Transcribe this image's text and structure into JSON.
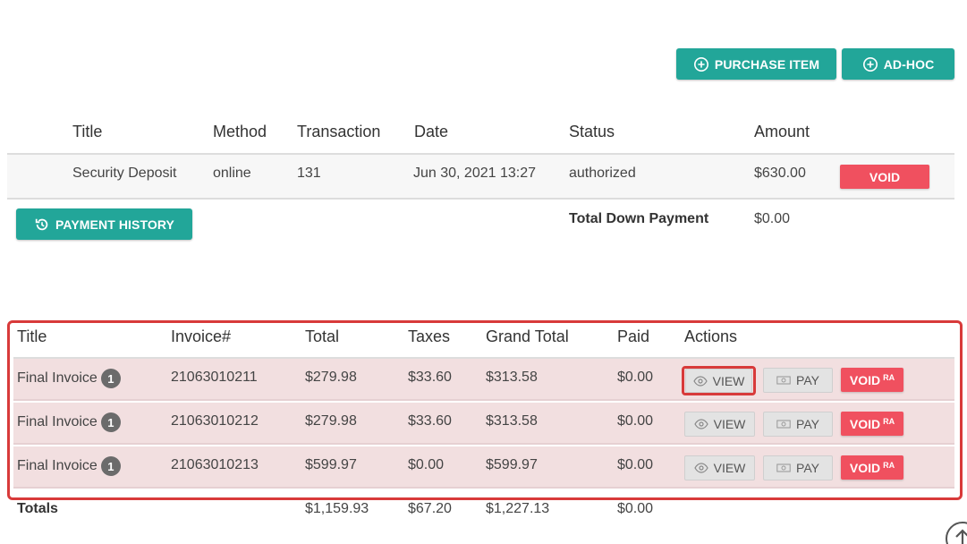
{
  "toolbar": {
    "purchase_item_label": "PURCHASE ITEM",
    "adhoc_label": "AD-HOC"
  },
  "payments": {
    "headers": [
      "Title",
      "Method",
      "Transaction",
      "Date",
      "Status",
      "Amount"
    ],
    "rows": [
      {
        "title": "Security Deposit",
        "method": "online",
        "transaction": "131",
        "date": "Jun 30, 2021 13:27",
        "status": "authorized",
        "amount": "$630.00",
        "action": "VOID"
      }
    ],
    "history_label": "PAYMENT HISTORY",
    "total_down_label": "Total Down Payment",
    "total_down_value": "$0.00"
  },
  "invoices": {
    "headers": [
      "Title",
      "Invoice#",
      "Total",
      "Taxes",
      "Grand Total",
      "Paid",
      "Actions"
    ],
    "rows": [
      {
        "title": "Final Invoice",
        "badge": "1",
        "invoice": "21063010211",
        "total": "$279.98",
        "taxes": "$33.60",
        "grand_total": "$313.58",
        "paid": "$0.00"
      },
      {
        "title": "Final Invoice",
        "badge": "1",
        "invoice": "21063010212",
        "total": "$279.98",
        "taxes": "$33.60",
        "grand_total": "$313.58",
        "paid": "$0.00"
      },
      {
        "title": "Final Invoice",
        "badge": "1",
        "invoice": "21063010213",
        "total": "$599.97",
        "taxes": "$0.00",
        "grand_total": "$599.97",
        "paid": "$0.00"
      }
    ],
    "actions": {
      "view": "VIEW",
      "pay": "PAY",
      "void": "VOID",
      "void_sup": "RA"
    },
    "totals": {
      "label": "Totals",
      "total": "$1,159.93",
      "taxes": "$67.20",
      "grand_total": "$1,227.13",
      "paid": "$0.00"
    }
  },
  "colors": {
    "teal": "#22a699",
    "void_red": "#f0505f",
    "row_pink": "#f2dfe0",
    "highlight": "#d83a3a"
  },
  "icons": [
    "plus-circle-icon",
    "history-icon",
    "eye-icon",
    "money-icon",
    "arrow-up-circle-icon"
  ]
}
